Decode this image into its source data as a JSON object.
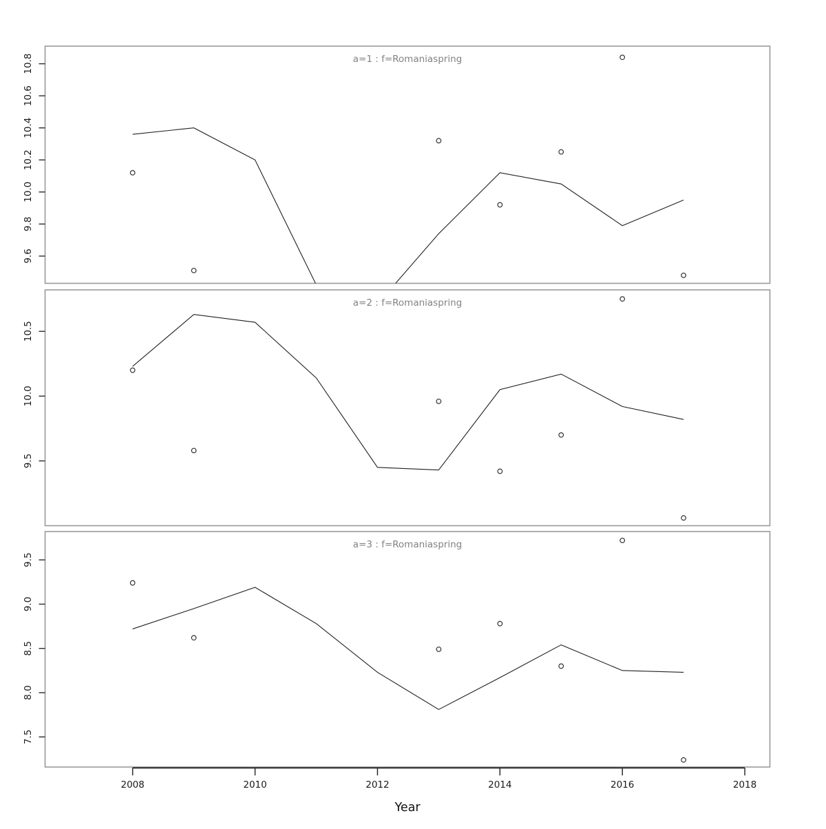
{
  "chart_meta": {
    "title": "",
    "xlabel": "Year",
    "xlim": [
      2006.57,
      2018.41
    ],
    "xticks": {
      "values": [
        2008,
        2010,
        2012,
        2014,
        2016,
        2018
      ],
      "labels": [
        "2008",
        "2010",
        "2012",
        "2014",
        "2016",
        "2018"
      ]
    },
    "axis_segment": [
      2008,
      2018
    ],
    "grid": "off",
    "legend": "none",
    "colors": {
      "background": "#ffffff",
      "panel_border": "#9a9a9a",
      "axis_line": "#2b2b2b",
      "tick": "#2b2b2b",
      "tick_label": "#1a1a1a",
      "strip_text": "#828282",
      "line": "#1f1f1f",
      "point": "#333333"
    }
  },
  "chart_data": [
    {
      "type": "line",
      "panel": "a=1",
      "strip_title": "a=1 : f=Romaniaspring",
      "ylim": [
        9.43,
        10.91
      ],
      "yticks": {
        "values": [
          9.6,
          9.8,
          10.0,
          10.2,
          10.4,
          10.6,
          10.8
        ],
        "labels": [
          "9.6",
          "9.8",
          "10.0",
          "10.2",
          "10.4",
          "10.6",
          "10.8"
        ]
      },
      "line": {
        "x": [
          2008,
          2009,
          2010,
          2011,
          2012,
          2013,
          2014,
          2015,
          2016,
          2017
        ],
        "y": [
          10.36,
          10.4,
          10.2,
          9.42,
          9.3,
          9.74,
          10.12,
          10.05,
          9.79,
          9.95
        ]
      },
      "points": {
        "x": [
          2008,
          2009,
          2013,
          2014,
          2015,
          2016,
          2017
        ],
        "y": [
          10.12,
          9.51,
          10.32,
          9.92,
          10.25,
          10.84,
          9.48
        ]
      }
    },
    {
      "type": "line",
      "panel": "a=2",
      "strip_title": "a=2 : f=Romaniaspring",
      "ylim": [
        9.0,
        10.82
      ],
      "yticks": {
        "values": [
          9.5,
          10.0,
          10.5
        ],
        "labels": [
          "9.5",
          "10.0",
          "10.5"
        ]
      },
      "line": {
        "x": [
          2008,
          2009,
          2010,
          2011,
          2012,
          2013,
          2014,
          2015,
          2016,
          2017
        ],
        "y": [
          10.23,
          10.63,
          10.57,
          10.14,
          9.45,
          9.43,
          10.05,
          10.17,
          9.92,
          9.82
        ]
      },
      "points": {
        "x": [
          2008,
          2009,
          2013,
          2014,
          2015,
          2016,
          2017
        ],
        "y": [
          10.2,
          9.58,
          9.96,
          9.42,
          9.7,
          10.75,
          9.06
        ]
      }
    },
    {
      "type": "line",
      "panel": "a=3",
      "strip_title": "a=3 : f=Romaniaspring",
      "ylim": [
        7.16,
        9.82
      ],
      "yticks": {
        "values": [
          7.5,
          8.0,
          8.5,
          9.0,
          9.5
        ],
        "labels": [
          "7.5",
          "8.0",
          "8.5",
          "9.0",
          "9.5"
        ]
      },
      "line": {
        "x": [
          2008,
          2009,
          2010,
          2011,
          2012,
          2013,
          2014,
          2015,
          2016,
          2017
        ],
        "y": [
          8.72,
          8.95,
          9.19,
          8.78,
          8.23,
          7.81,
          8.17,
          8.54,
          8.25,
          8.23
        ]
      },
      "points": {
        "x": [
          2008,
          2009,
          2013,
          2014,
          2015,
          2016,
          2017
        ],
        "y": [
          9.24,
          8.62,
          8.49,
          8.78,
          8.3,
          9.72,
          7.24
        ]
      }
    }
  ]
}
